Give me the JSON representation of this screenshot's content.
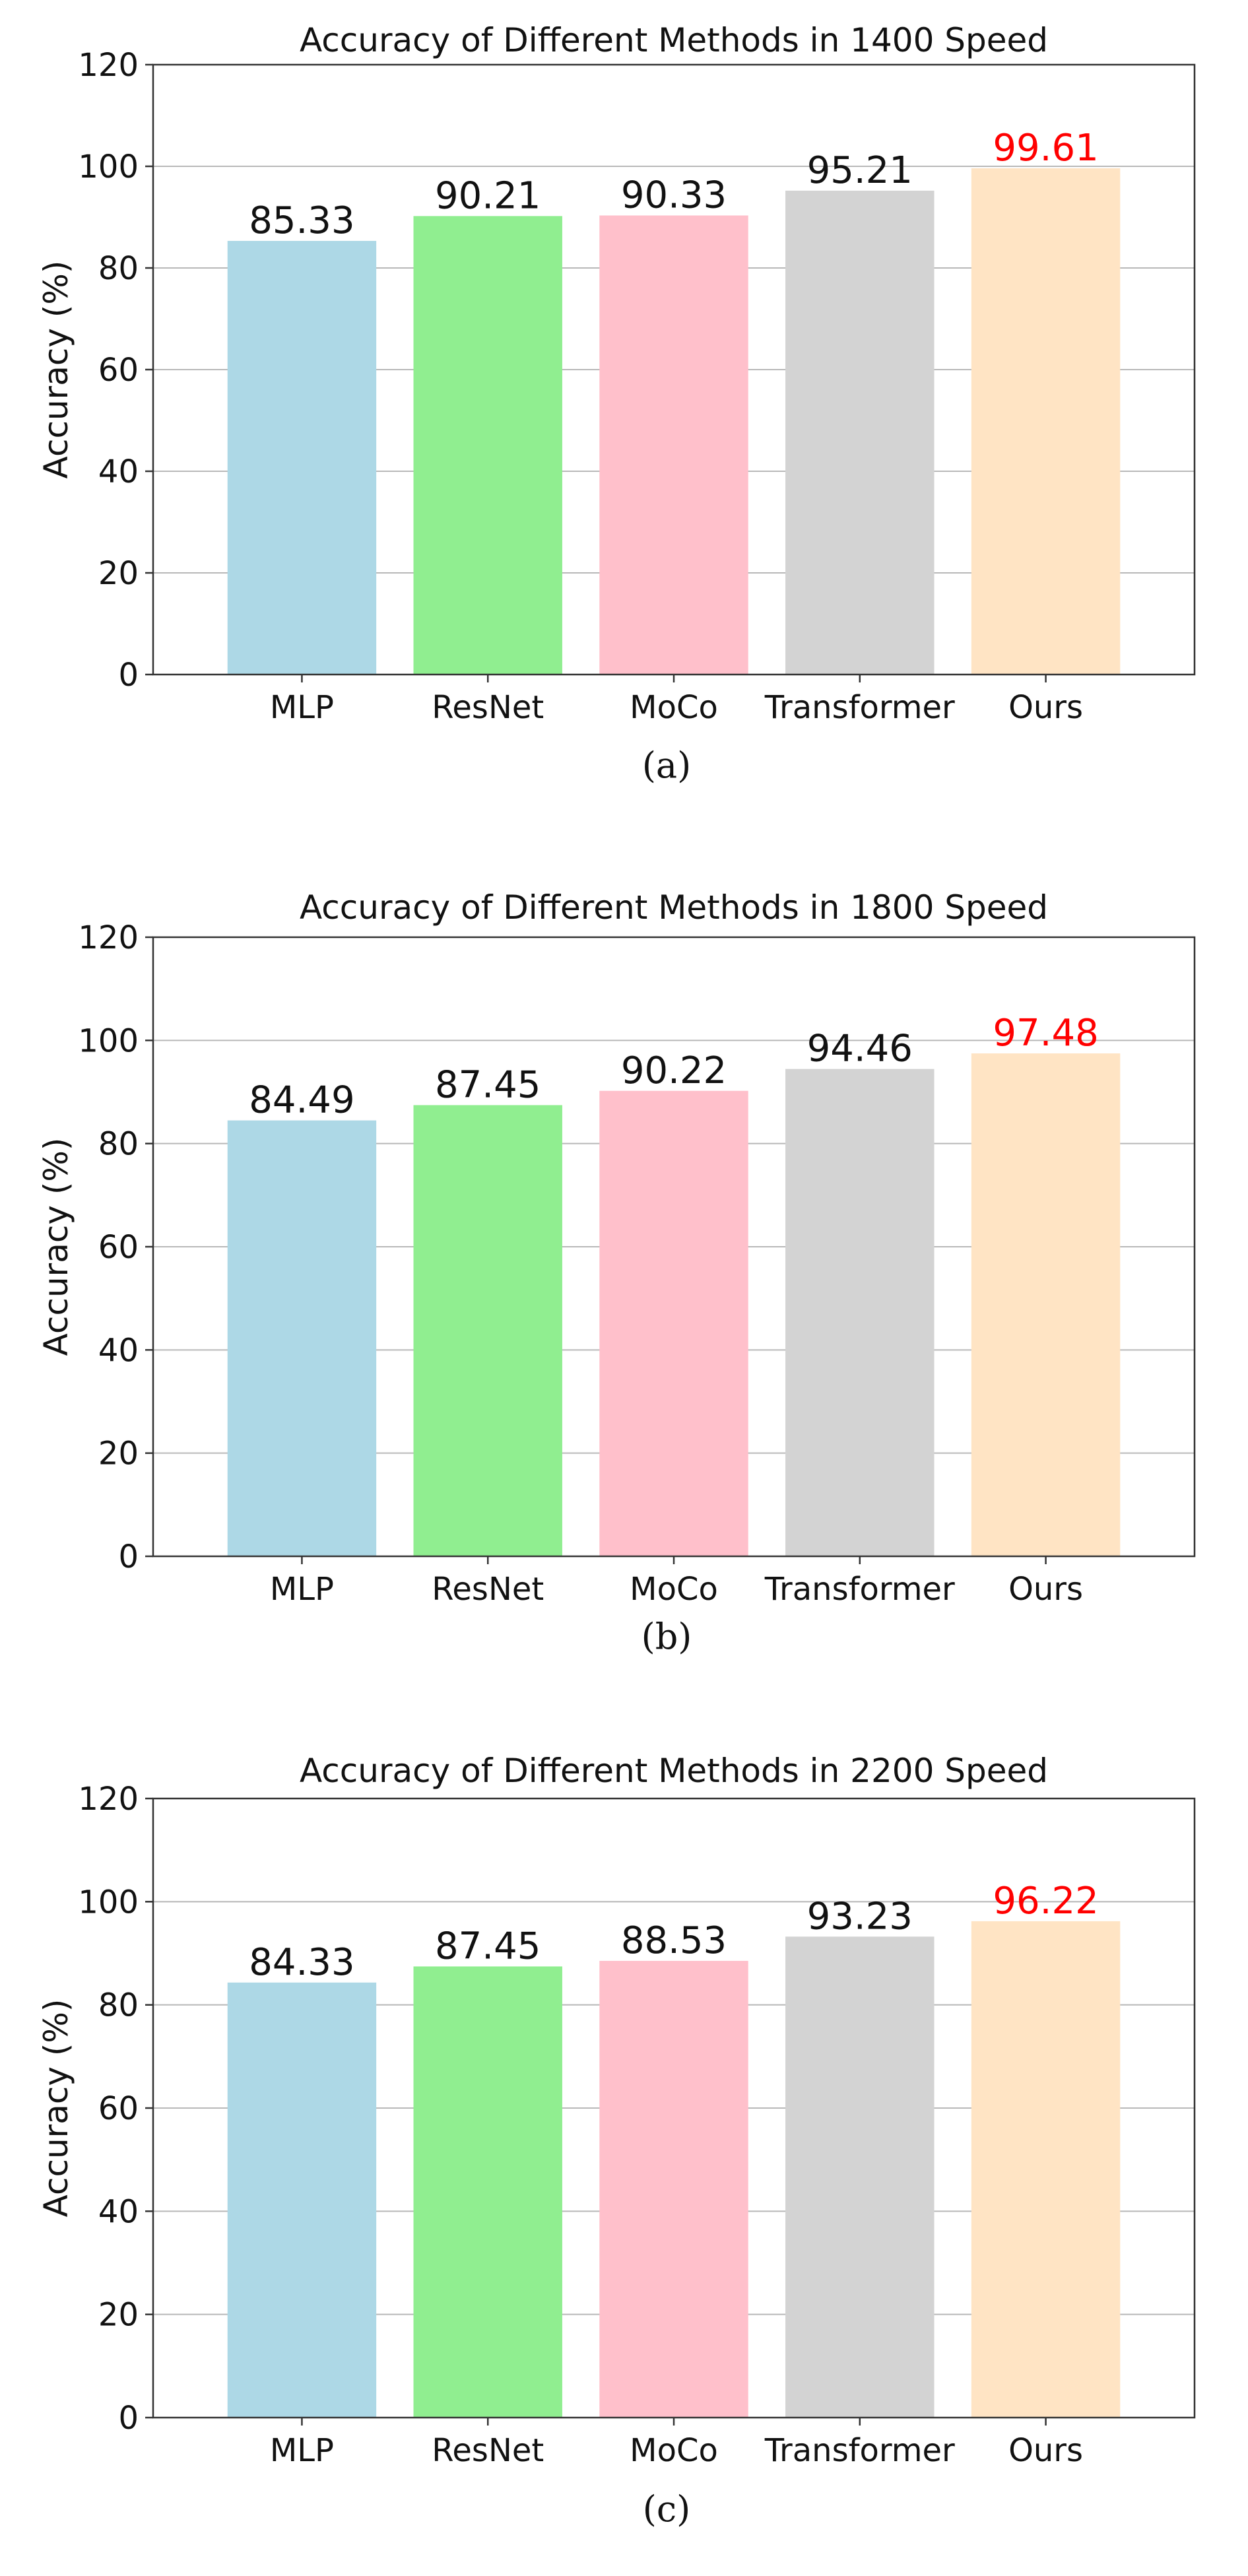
{
  "chart_data": [
    {
      "type": "bar",
      "title": "Accuracy of Different Methods in 1400 Speed",
      "ylabel": "Accuracy (%)",
      "xlabel": "",
      "categories": [
        "MLP",
        "ResNet",
        "MoCo",
        "Transformer",
        "Ours"
      ],
      "values": [
        85.33,
        90.21,
        90.33,
        95.21,
        99.61
      ],
      "value_labels": [
        "85.33",
        "90.21",
        "90.33",
        "95.21",
        "99.61"
      ],
      "yticks": [
        "0",
        "20",
        "40",
        "60",
        "80",
        "100",
        "120"
      ],
      "ylim": [
        0,
        120
      ],
      "grid": "horizontal",
      "bar_colors": [
        "#add8e6",
        "#90ee90",
        "#ffc0cb",
        "#d3d3d3",
        "#ffe4c4"
      ],
      "value_label_colors": [
        "#111111",
        "#111111",
        "#111111",
        "#111111",
        "#ff0000"
      ],
      "caption": "(a)"
    },
    {
      "type": "bar",
      "title": "Accuracy of Different Methods in 1800 Speed",
      "ylabel": "Accuracy (%)",
      "xlabel": "",
      "categories": [
        "MLP",
        "ResNet",
        "MoCo",
        "Transformer",
        "Ours"
      ],
      "values": [
        84.49,
        87.45,
        90.22,
        94.46,
        97.48
      ],
      "value_labels": [
        "84.49",
        "87.45",
        "90.22",
        "94.46",
        "97.48"
      ],
      "yticks": [
        "0",
        "20",
        "40",
        "60",
        "80",
        "100",
        "120"
      ],
      "ylim": [
        0,
        120
      ],
      "grid": "horizontal",
      "bar_colors": [
        "#add8e6",
        "#90ee90",
        "#ffc0cb",
        "#d3d3d3",
        "#ffe4c4"
      ],
      "value_label_colors": [
        "#111111",
        "#111111",
        "#111111",
        "#111111",
        "#ff0000"
      ],
      "caption": "(b)"
    },
    {
      "type": "bar",
      "title": "Accuracy of Different Methods in 2200 Speed",
      "ylabel": "Accuracy (%)",
      "xlabel": "",
      "categories": [
        "MLP",
        "ResNet",
        "MoCo",
        "Transformer",
        "Ours"
      ],
      "values": [
        84.33,
        87.45,
        88.53,
        93.23,
        96.22
      ],
      "value_labels": [
        "84.33",
        "87.45",
        "88.53",
        "93.23",
        "96.22"
      ],
      "yticks": [
        "0",
        "20",
        "40",
        "60",
        "80",
        "100",
        "120"
      ],
      "ylim": [
        0,
        120
      ],
      "grid": "horizontal",
      "bar_colors": [
        "#add8e6",
        "#90ee90",
        "#ffc0cb",
        "#d3d3d3",
        "#ffe4c4"
      ],
      "value_label_colors": [
        "#111111",
        "#111111",
        "#111111",
        "#111111",
        "#ff0000"
      ],
      "caption": "(c)"
    }
  ]
}
